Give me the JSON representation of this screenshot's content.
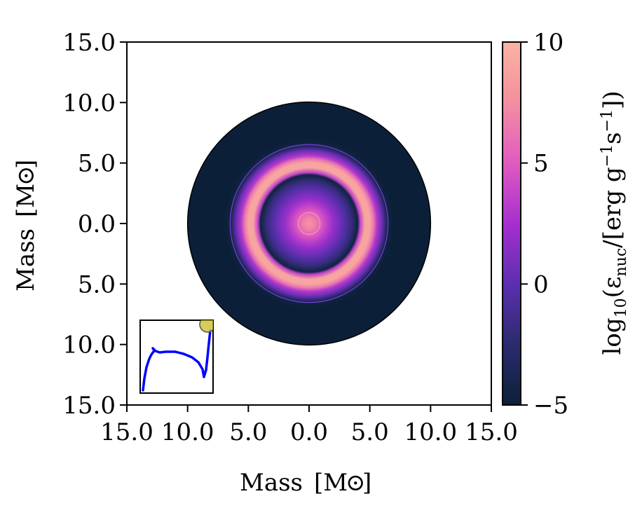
{
  "chart_data": {
    "type": "heatmap",
    "subtype": "kippenhahn-disc",
    "xlabel_main": "Mass",
    "xlabel_unit": "[M",
    "ylabel_main": "Mass",
    "ylabel_unit": "[M",
    "sun_symbol_close": "]",
    "xlim": [
      -15,
      15
    ],
    "ylim": [
      -15,
      15
    ],
    "x_tick_values": [
      -15,
      -10,
      -5,
      0,
      5,
      10,
      15
    ],
    "x_tick_labels": [
      "15.0",
      "10.0",
      "5.0",
      "0.0",
      "5.0",
      "10.0",
      "15.0"
    ],
    "y_tick_values": [
      15,
      10,
      5,
      0,
      -5,
      -10,
      -15
    ],
    "y_tick_labels": [
      "15.0",
      "10.0",
      "5.0",
      "0.0",
      "5.0",
      "10.0",
      "15.0"
    ],
    "star_total_mass": 10.0,
    "radial_profile_mass": [
      0.0,
      0.5,
      1.0,
      1.5,
      2.0,
      2.5,
      3.0,
      3.5,
      3.8,
      4.0,
      4.2,
      4.6,
      5.0,
      5.3,
      5.6,
      6.0,
      6.5,
      7.0,
      8.0,
      9.0,
      10.0
    ],
    "radial_profile_log_eps": [
      8.0,
      6.8,
      5.0,
      3.5,
      2.0,
      0.8,
      -0.5,
      -2.0,
      -3.5,
      -4.5,
      3.5,
      9.0,
      9.0,
      6.5,
      3.0,
      0.5,
      -4.5,
      -5.0,
      -5.0,
      -5.0,
      -5.0
    ],
    "contour_circles_mass": [
      6.5
    ],
    "colorbar": {
      "label_prefix": "log",
      "label_sub": "10",
      "label_text": "(ε",
      "label_sub2": "nuc",
      "label_units": "/[erg g",
      "label_exp": "−1",
      "label_s": "s",
      "label_exp2": "−1",
      "label_close": "])",
      "range": [
        -5,
        10
      ],
      "tick_values": [
        10,
        5,
        0,
        -5
      ],
      "tick_labels": [
        "10",
        "5",
        "0",
        "−5"
      ],
      "colormap_stops": [
        "#0b2038",
        "#2b2b6e",
        "#5b2fb0",
        "#a62fcf",
        "#e05bc0",
        "#f38fa0",
        "#fbb3a2"
      ]
    },
    "inset": {
      "description_hidden": true,
      "track_color": "#0000ff",
      "marker_color": "#c8c030",
      "position": "bottom-left"
    }
  }
}
